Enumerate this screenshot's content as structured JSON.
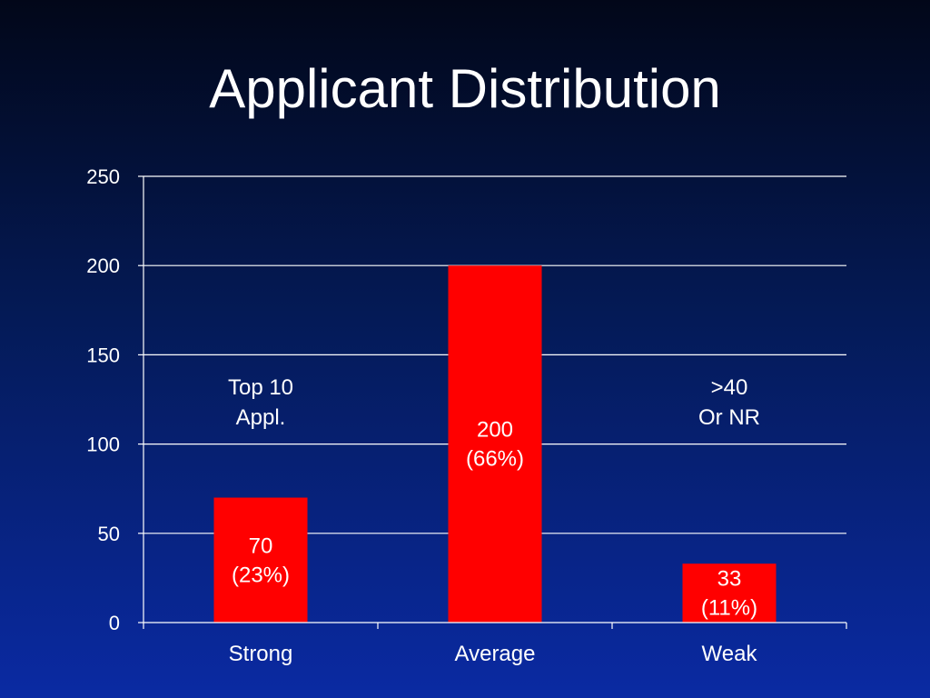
{
  "title": "Applicant Distribution",
  "colors": {
    "bar": "#ff0000",
    "text": "#ffffff",
    "gridline": "#ffffff"
  },
  "chart_data": {
    "type": "bar",
    "title": "Applicant Distribution",
    "categories": [
      "Strong",
      "Average",
      "Weak"
    ],
    "values": [
      70,
      200,
      33
    ],
    "bar_labels": [
      [
        "70",
        "(23%)"
      ],
      [
        "200",
        "(66%)"
      ],
      [
        "33",
        "(11%)"
      ]
    ],
    "annotations": [
      {
        "category": "Strong",
        "lines": [
          "Top 10",
          "Appl."
        ]
      },
      {
        "category": "Weak",
        "lines": [
          ">40",
          "Or NR"
        ]
      }
    ],
    "ylim": [
      0,
      250
    ],
    "yticks": [
      0,
      50,
      100,
      150,
      200,
      250
    ],
    "xlabel": "",
    "ylabel": "",
    "grid": true,
    "legend": "none"
  }
}
